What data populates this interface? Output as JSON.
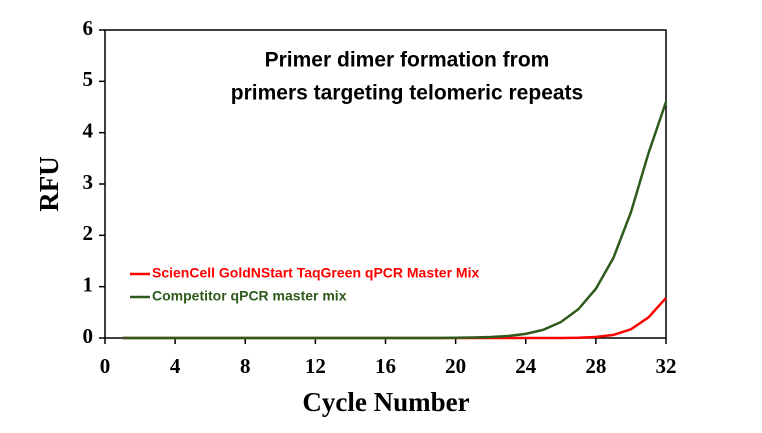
{
  "chart_data": {
    "type": "line",
    "title": [
      "Primer dimer formation from",
      "primers targeting telomeric repeats"
    ],
    "x_label": "Cycle Number",
    "y_label": "RFU",
    "x": [
      1,
      2,
      3,
      4,
      5,
      6,
      7,
      8,
      9,
      10,
      11,
      12,
      13,
      14,
      15,
      16,
      17,
      18,
      19,
      20,
      21,
      22,
      23,
      24,
      25,
      26,
      27,
      28,
      29,
      30,
      31,
      32
    ],
    "series": [
      {
        "name": "ScienCell GoldNStart TaqGreen qPCR Master Mix",
        "color": "#ff0000",
        "values": [
          0,
          0,
          0,
          0,
          0,
          0,
          0,
          0,
          0,
          0,
          0,
          0,
          0,
          0,
          0,
          0,
          0,
          0,
          0,
          0,
          0,
          0,
          0,
          0,
          0,
          0,
          0.005,
          0.02,
          0.06,
          0.17,
          0.4,
          0.78
        ]
      },
      {
        "name": "Competitor qPCR master mix",
        "color": "#2e5a1c",
        "values": [
          0,
          0,
          0,
          0,
          0,
          0,
          0,
          0,
          0,
          0,
          0,
          0,
          0,
          0,
          0,
          0,
          0,
          0,
          0,
          0.005,
          0.01,
          0.02,
          0.04,
          0.08,
          0.16,
          0.31,
          0.56,
          0.96,
          1.56,
          2.45,
          3.6,
          4.6
        ]
      }
    ],
    "xlim": [
      0,
      32
    ],
    "xticks": [
      0,
      4,
      8,
      12,
      16,
      20,
      24,
      28,
      32
    ],
    "ylim": [
      0,
      6
    ],
    "yticks": [
      0,
      1,
      2,
      3,
      4,
      5,
      6
    ],
    "legend": "lower-left"
  }
}
